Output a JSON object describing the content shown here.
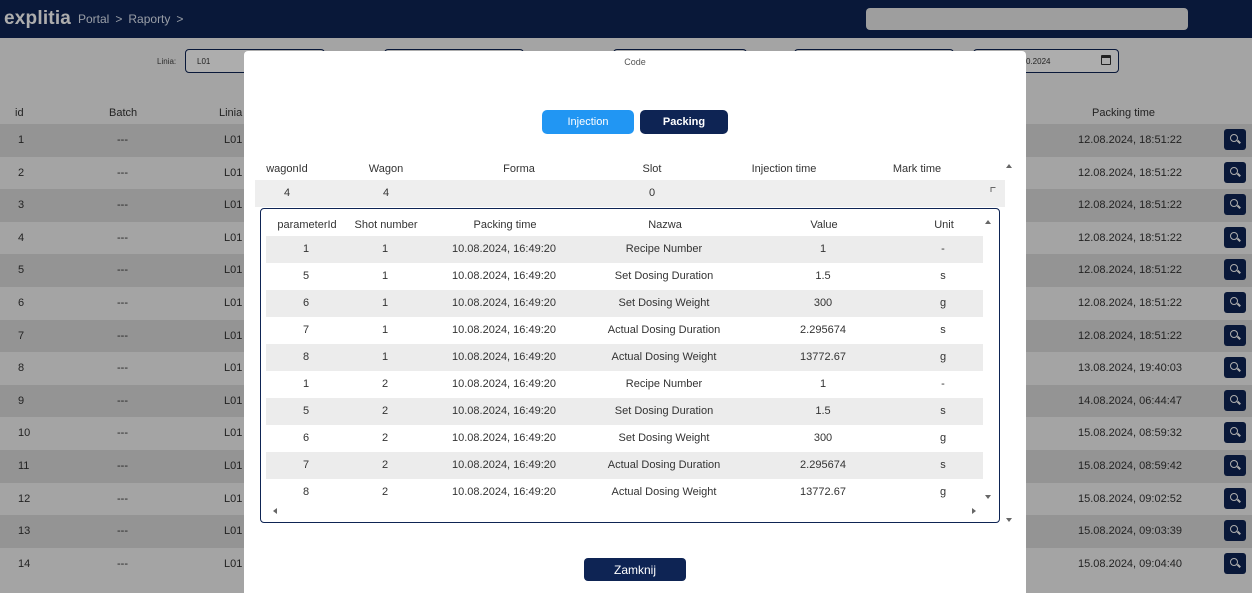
{
  "header": {
    "logo": "explitia",
    "breadcrumb": [
      "Portal",
      "Raporty"
    ],
    "separator": ">"
  },
  "filters": {
    "line_label": "Linia:",
    "line_value": "L01",
    "date_value": "0.2024"
  },
  "bg_table": {
    "headers": {
      "id": "id",
      "batch": "Batch",
      "line": "Linia",
      "packing_time": "Packing time"
    },
    "rows": [
      {
        "id": "1",
        "batch": "---",
        "line": "L01",
        "packing_time": "12.08.2024, 18:51:22"
      },
      {
        "id": "2",
        "batch": "---",
        "line": "L01",
        "packing_time": "12.08.2024, 18:51:22"
      },
      {
        "id": "3",
        "batch": "---",
        "line": "L01",
        "packing_time": "12.08.2024, 18:51:22"
      },
      {
        "id": "4",
        "batch": "---",
        "line": "L01",
        "packing_time": "12.08.2024, 18:51:22"
      },
      {
        "id": "5",
        "batch": "---",
        "line": "L01",
        "packing_time": "12.08.2024, 18:51:22"
      },
      {
        "id": "6",
        "batch": "---",
        "line": "L01",
        "packing_time": "12.08.2024, 18:51:22"
      },
      {
        "id": "7",
        "batch": "---",
        "line": "L01",
        "packing_time": "12.08.2024, 18:51:22"
      },
      {
        "id": "8",
        "batch": "---",
        "line": "L01",
        "packing_time": "13.08.2024, 19:40:03"
      },
      {
        "id": "9",
        "batch": "---",
        "line": "L01",
        "packing_time": "14.08.2024, 06:44:47"
      },
      {
        "id": "10",
        "batch": "---",
        "line": "L01",
        "packing_time": "15.08.2024, 08:59:32"
      },
      {
        "id": "11",
        "batch": "---",
        "line": "L01",
        "packing_time": "15.08.2024, 08:59:42"
      },
      {
        "id": "12",
        "batch": "---",
        "line": "L01",
        "packing_time": "15.08.2024, 09:02:52"
      },
      {
        "id": "13",
        "batch": "---",
        "line": "L01",
        "packing_time": "15.08.2024, 09:03:39"
      },
      {
        "id": "14",
        "batch": "---",
        "line": "L01",
        "packing_time": "15.08.2024, 09:04:40"
      }
    ]
  },
  "modal": {
    "title": "Code",
    "tabs": {
      "injection": "Injection",
      "packing": "Packing"
    },
    "outer_headers": {
      "wagonId": "wagonId",
      "wagon": "Wagon",
      "forma": "Forma",
      "slot": "Slot",
      "injection_time": "Injection time",
      "mark_time": "Mark time"
    },
    "outer_row": {
      "wagonId": "4",
      "wagon": "4",
      "slot": "0"
    },
    "inner_headers": {
      "parameterId": "parameterId",
      "shot_number": "Shot number",
      "packing_time": "Packing time",
      "nazwa": "Nazwa",
      "value": "Value",
      "unit": "Unit"
    },
    "inner_rows": [
      {
        "parameterId": "1",
        "shot": "1",
        "time": "10.08.2024, 16:49:20",
        "name": "Recipe Number",
        "value": "1",
        "unit": "-"
      },
      {
        "parameterId": "5",
        "shot": "1",
        "time": "10.08.2024, 16:49:20",
        "name": "Set Dosing Duration",
        "value": "1.5",
        "unit": "s"
      },
      {
        "parameterId": "6",
        "shot": "1",
        "time": "10.08.2024, 16:49:20",
        "name": "Set Dosing Weight",
        "value": "300",
        "unit": "g"
      },
      {
        "parameterId": "7",
        "shot": "1",
        "time": "10.08.2024, 16:49:20",
        "name": "Actual Dosing Duration",
        "value": "2.295674",
        "unit": "s"
      },
      {
        "parameterId": "8",
        "shot": "1",
        "time": "10.08.2024, 16:49:20",
        "name": "Actual Dosing Weight",
        "value": "13772.67",
        "unit": "g"
      },
      {
        "parameterId": "1",
        "shot": "2",
        "time": "10.08.2024, 16:49:20",
        "name": "Recipe Number",
        "value": "1",
        "unit": "-"
      },
      {
        "parameterId": "5",
        "shot": "2",
        "time": "10.08.2024, 16:49:20",
        "name": "Set Dosing Duration",
        "value": "1.5",
        "unit": "s"
      },
      {
        "parameterId": "6",
        "shot": "2",
        "time": "10.08.2024, 16:49:20",
        "name": "Set Dosing Weight",
        "value": "300",
        "unit": "g"
      },
      {
        "parameterId": "7",
        "shot": "2",
        "time": "10.08.2024, 16:49:20",
        "name": "Actual Dosing Duration",
        "value": "2.295674",
        "unit": "s"
      },
      {
        "parameterId": "8",
        "shot": "2",
        "time": "10.08.2024, 16:49:20",
        "name": "Actual Dosing Weight",
        "value": "13772.67",
        "unit": "g"
      }
    ],
    "close_label": "Zamknij"
  }
}
